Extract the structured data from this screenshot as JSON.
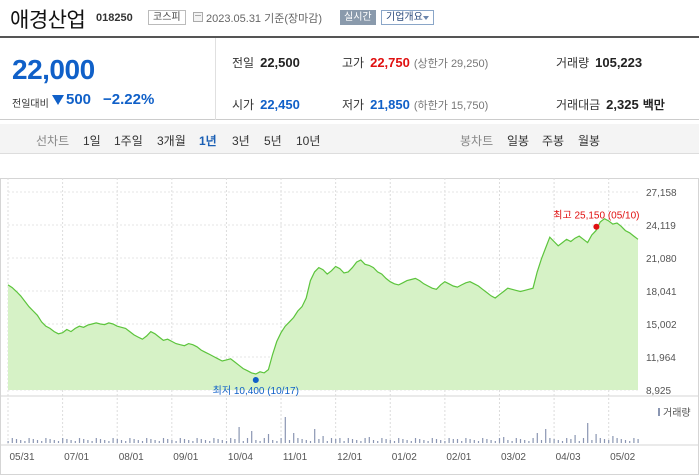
{
  "header": {
    "company_name": "애경산업",
    "code": "018250",
    "market": "코스피",
    "base_date": "2023.05.31 기준(장마감)",
    "realtime_label": "실시간",
    "overview_label": "기업개요"
  },
  "price": {
    "current": "22,000",
    "change_label": "전일대비",
    "change": "500",
    "change_rate": "−2.22%"
  },
  "stats": {
    "prev_close": {
      "label": "전일",
      "value": "22,500"
    },
    "high": {
      "label": "고가",
      "value": "22,750",
      "sub": "(상한가 29,250)"
    },
    "volume": {
      "label": "거래량",
      "value": "105,223"
    },
    "open": {
      "label": "시가",
      "value": "22,450"
    },
    "low": {
      "label": "저가",
      "value": "21,850",
      "sub": "(하한가 15,750)"
    },
    "amount": {
      "label": "거래대금",
      "value": "2,325",
      "unit": "백만"
    }
  },
  "line_chart_nav": {
    "label": "선차트",
    "periods": [
      "1일",
      "1주일",
      "3개월",
      "1년",
      "3년",
      "5년",
      "10년"
    ],
    "selected": "1년"
  },
  "candle_chart_nav": {
    "label": "봉차트",
    "periods": [
      "일봉",
      "주봉",
      "월봉"
    ]
  },
  "colors": {
    "price_down": "#1060c8",
    "price_up": "#e01010",
    "line": "#5cc43c",
    "area": "#d6f2c6",
    "volume_bar": "#8a96b2"
  },
  "chart_data": {
    "type": "area",
    "x_tick_labels": [
      "05/31",
      "07/01",
      "08/01",
      "09/01",
      "10/04",
      "11/01",
      "12/01",
      "01/02",
      "02/01",
      "03/02",
      "04/03",
      "05/02"
    ],
    "y_ticks": [
      "27,158",
      "24,119",
      "21,080",
      "18,041",
      "15,002",
      "11,964",
      "8,925"
    ],
    "ylim": [
      8925,
      27158
    ],
    "high_annotation": "최고 25,150 (05/10)",
    "low_annotation": "최저 10,400 (10/17)",
    "volume_legend": "거래량",
    "series": [
      {
        "values": [
          18600,
          18350,
          18000,
          17600,
          17100,
          16600,
          16200,
          15800,
          15200,
          14800,
          14600,
          14300,
          14100,
          14200,
          14500,
          14300,
          14600,
          14800,
          14700,
          14900,
          15000,
          15100,
          15000,
          14950,
          15100,
          15000,
          14800,
          14700,
          14600,
          14300,
          14000,
          13800,
          13600,
          13900,
          14300,
          14100,
          13800,
          13500,
          13600,
          13400,
          13200,
          13100,
          13000,
          13200,
          13100,
          12900,
          12600,
          12400,
          12200,
          12000,
          11800,
          11600,
          11700,
          11800,
          11500,
          11200,
          10900,
          10700,
          10500,
          10400,
          10600,
          10500,
          10800,
          12200,
          13400,
          14200,
          14800,
          15200,
          15600,
          16200,
          16600,
          17400,
          19000,
          19800,
          20200,
          20000,
          19600,
          19900,
          20300,
          20100,
          19700,
          19800,
          20200,
          20700,
          20900,
          20500,
          20400,
          20200,
          19800,
          19600,
          19200,
          18900,
          18700,
          18600,
          18800,
          19000,
          19100,
          19200,
          19000,
          18700,
          18500,
          18300,
          18200,
          18600,
          18900,
          18700,
          18500,
          18400,
          18600,
          18800,
          18900,
          18700,
          18500,
          18200,
          17900,
          17600,
          17400,
          17700,
          18000,
          18300,
          18200,
          18100,
          18000,
          18100,
          18200,
          18300,
          19800,
          21000,
          22000,
          23000,
          22600,
          22200,
          22500,
          22800,
          22600,
          22900,
          23100,
          22800,
          22500,
          23200,
          23600,
          24400,
          24700,
          24500,
          24200,
          24300,
          24000,
          23600,
          23400,
          23100,
          22800
        ]
      },
      {
        "name": "거래량"
      }
    ]
  }
}
